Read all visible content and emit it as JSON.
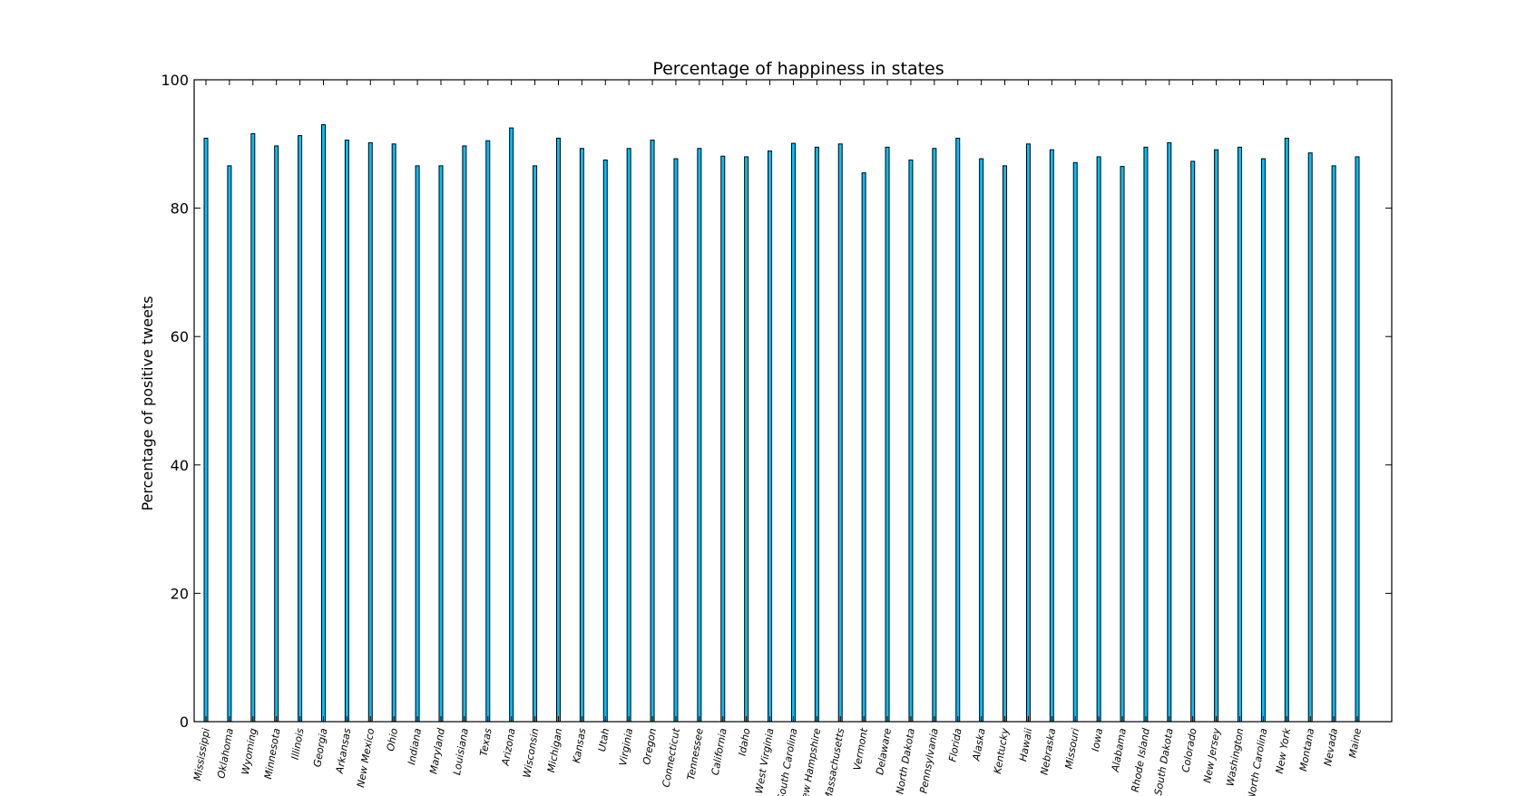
{
  "chart_data": {
    "type": "bar",
    "title": "Percentage of happiness in states",
    "xlabel": "",
    "ylabel": "Percentage of positive tweets",
    "ylim": [
      0,
      100
    ],
    "yticks": [
      "0",
      "20",
      "40",
      "60",
      "80",
      "100"
    ],
    "grid": false,
    "bar_color": "#00bfff",
    "edge_color": "#000000",
    "categories": [
      "Mississippi",
      "Oklahoma",
      "Wyoming",
      "Minnesota",
      "Illinois",
      "Georgia",
      "Arkansas",
      "New Mexico",
      "Ohio",
      "Indiana",
      "Maryland",
      "Louisiana",
      "Texas",
      "Arizona",
      "Wisconsin",
      "Michigan",
      "Kansas",
      "Utah",
      "Virginia",
      "Oregon",
      "Connecticut",
      "Tennessee",
      "California",
      "Idaho",
      "West Virginia",
      "South Carolina",
      "New Hampshire",
      "Massachusetts",
      "Vermont",
      "Delaware",
      "North Dakota",
      "Pennsylvania",
      "Florida",
      "Alaska",
      "Kentucky",
      "Hawaii",
      "Nebraska",
      "Missouri",
      "Iowa",
      "Alabama",
      "Rhode Island",
      "South Dakota",
      "Colorado",
      "New Jersey",
      "Washington",
      "North Carolina",
      "New York",
      "Montana",
      "Nevada",
      "Maine"
    ],
    "values": [
      90.9,
      86.6,
      91.6,
      89.7,
      91.3,
      93.0,
      90.6,
      90.2,
      90.0,
      86.6,
      86.6,
      89.7,
      90.5,
      92.5,
      86.6,
      90.9,
      89.3,
      87.5,
      89.3,
      90.6,
      87.7,
      89.3,
      88.1,
      88.0,
      88.9,
      90.1,
      89.5,
      90.0,
      85.5,
      89.5,
      87.5,
      89.3,
      90.9,
      87.7,
      86.6,
      90.0,
      89.1,
      87.1,
      88.0,
      86.5,
      89.5,
      90.2,
      87.3,
      89.1,
      89.5,
      87.7,
      90.9,
      88.6,
      86.6,
      88.0
    ]
  }
}
